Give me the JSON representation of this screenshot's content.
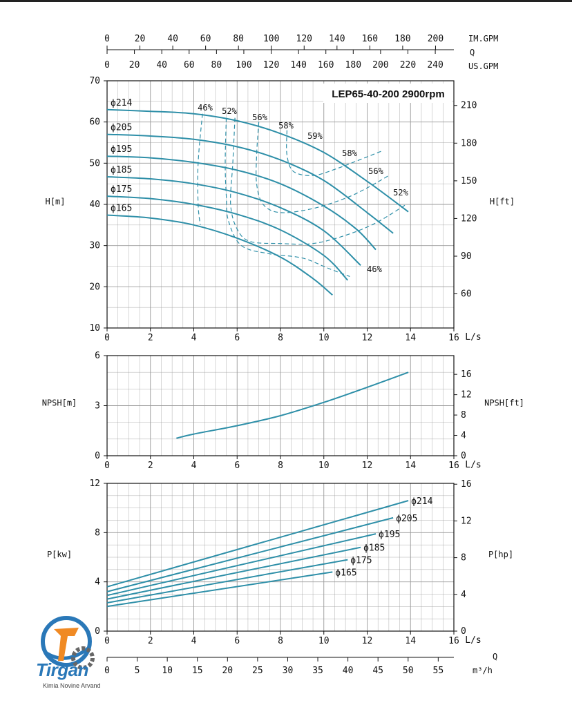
{
  "chart_data": {
    "type": "line",
    "title": "LEP65-40-200 2900rpm",
    "top_axes": {
      "im_gpm": {
        "label": "IM.GPM",
        "ticks": [
          0,
          20,
          40,
          60,
          80,
          100,
          120,
          140,
          160,
          180,
          200
        ]
      },
      "q_label": "Q",
      "us_gpm": {
        "label": "US.GPM",
        "ticks": [
          0,
          20,
          40,
          60,
          80,
          100,
          120,
          140,
          160,
          180,
          200,
          220,
          240
        ]
      }
    },
    "head_chart": {
      "ylabel_left": "H[m]",
      "ylabel_right": "H[ft]",
      "ylim": [
        10,
        70
      ],
      "yticks_left": [
        10,
        20,
        30,
        40,
        50,
        60,
        70
      ],
      "yticks_right": [
        60,
        90,
        120,
        150,
        180,
        210
      ],
      "xlim": [
        0,
        16
      ],
      "xticks": [
        0,
        2,
        4,
        6,
        8,
        10,
        12,
        14,
        16
      ],
      "xlabel": "L/s",
      "series": [
        {
          "name": "ϕ214",
          "x": [
            0,
            2,
            4,
            6,
            8,
            10,
            12,
            13.9
          ],
          "y": [
            63,
            62.6,
            62,
            60.3,
            57.2,
            52.6,
            45.6,
            38.2
          ]
        },
        {
          "name": "ϕ205",
          "x": [
            0,
            2,
            4,
            6,
            8,
            10,
            12,
            13.2
          ],
          "y": [
            57,
            56.6,
            55.8,
            54,
            50.8,
            45.8,
            38,
            33
          ]
        },
        {
          "name": "ϕ195",
          "x": [
            0,
            2,
            4,
            6,
            8,
            10,
            11.5,
            12.4
          ],
          "y": [
            51.7,
            51.3,
            50.2,
            48.3,
            45,
            39.6,
            34,
            29
          ]
        },
        {
          "name": "ϕ185",
          "x": [
            0,
            2,
            4,
            6,
            8,
            10,
            11.7
          ],
          "y": [
            46.7,
            46.2,
            45,
            42.8,
            39.2,
            33.6,
            25.2
          ]
        },
        {
          "name": "ϕ175",
          "x": [
            0,
            2,
            4,
            6,
            8,
            10,
            11.1
          ],
          "y": [
            42,
            41.4,
            40,
            37.6,
            33.8,
            27.6,
            21.6
          ]
        },
        {
          "name": "ϕ165",
          "x": [
            0,
            2,
            4,
            6,
            8,
            9.5,
            10.4
          ],
          "y": [
            37.4,
            36.7,
            35,
            31.8,
            27.2,
            22,
            18
          ]
        }
      ],
      "efficiency_labels": [
        "46%",
        "52%",
        "56%",
        "58%",
        "59%",
        "58%",
        "56%",
        "52%",
        "46%"
      ]
    },
    "npsh_chart": {
      "ylabel_left": "NPSH[m]",
      "ylabel_right": "NPSH[ft]",
      "ylim": [
        0,
        6
      ],
      "yticks_left": [
        0,
        3,
        6
      ],
      "yticks_right": [
        0,
        4,
        8,
        12,
        16
      ],
      "xlim": [
        0,
        16
      ],
      "xticks": [
        0,
        2,
        4,
        6,
        8,
        10,
        12,
        14,
        16
      ],
      "xlabel": "L/s",
      "series": [
        {
          "name": "",
          "x": [
            3.2,
            4,
            6,
            8,
            10,
            12,
            13.9
          ],
          "y": [
            1.05,
            1.3,
            1.8,
            2.4,
            3.2,
            4.1,
            5
          ]
        }
      ]
    },
    "power_chart": {
      "ylabel_left": "P[kw]",
      "ylabel_right": "P[hp]",
      "ylim": [
        0,
        12
      ],
      "yticks_left": [
        0,
        4,
        8,
        12
      ],
      "yticks_right": [
        0,
        4,
        8,
        12,
        16
      ],
      "xlim": [
        0,
        16
      ],
      "xticks": [
        0,
        2,
        4,
        6,
        8,
        10,
        12,
        14,
        16
      ],
      "xlabel": "L/s",
      "q_label": "Q",
      "m3h": {
        "label": "m³/h",
        "ticks": [
          0,
          5,
          10,
          15,
          20,
          25,
          30,
          35,
          40,
          45,
          50,
          55
        ]
      },
      "series": [
        {
          "name": "ϕ214",
          "x": [
            0,
            13.9
          ],
          "y": [
            3.6,
            10.6
          ]
        },
        {
          "name": "ϕ205",
          "x": [
            0,
            13.2
          ],
          "y": [
            3.2,
            9.2
          ]
        },
        {
          "name": "ϕ195",
          "x": [
            0,
            12.4
          ],
          "y": [
            2.9,
            7.9
          ]
        },
        {
          "name": "ϕ185",
          "x": [
            0,
            11.7
          ],
          "y": [
            2.6,
            6.8
          ]
        },
        {
          "name": "ϕ175",
          "x": [
            0,
            11.1
          ],
          "y": [
            2.3,
            5.8
          ]
        },
        {
          "name": "ϕ165",
          "x": [
            0,
            10.4
          ],
          "y": [
            2.0,
            4.8
          ]
        }
      ]
    },
    "colors": {
      "curve": "#2e8fa8",
      "grid": "#9a9a9a",
      "axis": "#111111"
    }
  },
  "brand": {
    "name": "Tirgan",
    "tagline": "Kimia Novine Arvand"
  }
}
